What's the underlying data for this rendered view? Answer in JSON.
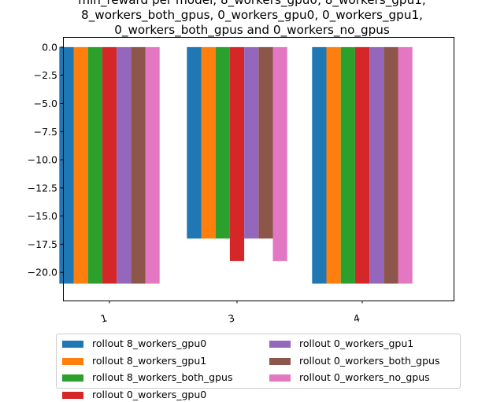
{
  "chart_data": {
    "type": "bar",
    "title_lines": [
      "min_reward per model, 8_workers_gpu0, 8_workers_gpu1,",
      "8_workers_both_gpus, 0_workers_gpu0, 0_workers_gpu1,",
      "0_workers_both_gpus and 0_workers_no_gpus"
    ],
    "categories": [
      "1",
      "3",
      "4"
    ],
    "ylim": [
      -22.5,
      0.9
    ],
    "yticks": [
      0.0,
      -2.5,
      -5.0,
      -7.5,
      -10.0,
      -12.5,
      -15.0,
      -17.5,
      -20.0
    ],
    "ytick_labels": [
      "0.0",
      "−2.5",
      "−5.0",
      "−7.5",
      "−10.0",
      "−12.5",
      "−15.0",
      "−17.5",
      "−20.0"
    ],
    "grid": false,
    "legend_position": "bottom",
    "series": [
      {
        "name": "rollout 8_workers_gpu0",
        "color": "#1f77b4",
        "values": [
          -21,
          -17,
          -21
        ]
      },
      {
        "name": "rollout 8_workers_gpu1",
        "color": "#ff7f0e",
        "values": [
          -21,
          -17,
          -21
        ]
      },
      {
        "name": "rollout 8_workers_both_gpus",
        "color": "#2ca02c",
        "values": [
          -21,
          -17,
          -21
        ]
      },
      {
        "name": "rollout 0_workers_gpu0",
        "color": "#d62728",
        "values": [
          -21,
          -19,
          -21
        ]
      },
      {
        "name": "rollout 0_workers_gpu1",
        "color": "#9467bd",
        "values": [
          -21,
          -17,
          -21
        ]
      },
      {
        "name": "rollout 0_workers_both_gpus",
        "color": "#8c564b",
        "values": [
          -21,
          -17,
          -21
        ]
      },
      {
        "name": "rollout 0_workers_no_gpus",
        "color": "#e377c2",
        "values": [
          -21,
          -19,
          -21
        ]
      }
    ]
  }
}
